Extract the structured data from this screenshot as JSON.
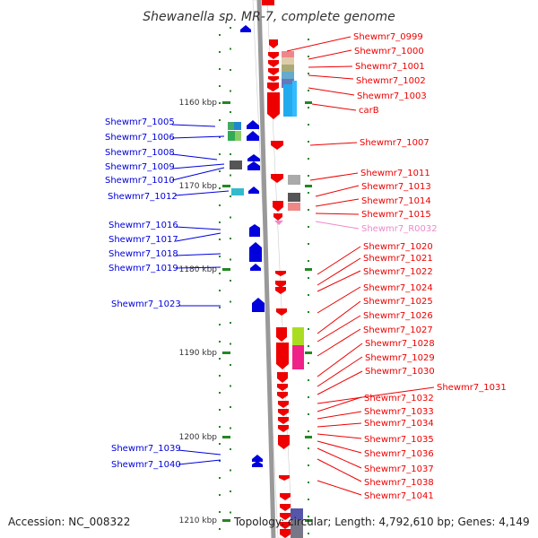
{
  "title": "Shewanella sp. MR-7, complete genome",
  "footer": {
    "accession": "Accession: NC_008322",
    "summary": "Topology: circular; Length: 4,792,610 bp; Genes: 4,149"
  },
  "axis": {
    "labels": [
      "1160 kbp",
      "1170 kbp",
      "1180 kbp",
      "1190 kbp",
      "1200 kbp",
      "1210 kbp"
    ]
  },
  "colors": {
    "forward": "#0000dd",
    "reverse": "#ee0000",
    "rna": "#ee88cc",
    "tick": "#228822",
    "backbone": "#999999"
  },
  "left_genes": [
    "Shewmr7_1005",
    "Shewmr7_1006",
    "Shewmr7_1008",
    "Shewmr7_1009",
    "Shewmr7_1010",
    "Shewmr7_1012",
    "Shewmr7_1016",
    "Shewmr7_1017",
    "Shewmr7_1018",
    "Shewmr7_1019",
    "Shewmr7_1023",
    "Shewmr7_1039",
    "Shewmr7_1040"
  ],
  "right_genes": [
    "Shewmr7_0999",
    "Shewmr7_1000",
    "Shewmr7_1001",
    "Shewmr7_1002",
    "Shewmr7_1003",
    "carB",
    "Shewmr7_1007",
    "Shewmr7_1011",
    "Shewmr7_1013",
    "Shewmr7_1014",
    "Shewmr7_1015",
    "Shewmr7_R0032",
    "Shewmr7_1020",
    "Shewmr7_1021",
    "Shewmr7_1022",
    "Shewmr7_1024",
    "Shewmr7_1025",
    "Shewmr7_1026",
    "Shewmr7_1027",
    "Shewmr7_1028",
    "Shewmr7_1029",
    "Shewmr7_1030",
    "Shewmr7_1031",
    "Shewmr7_1032",
    "Shewmr7_1033",
    "Shewmr7_1034",
    "Shewmr7_1035",
    "Shewmr7_1036",
    "Shewmr7_1037",
    "Shewmr7_1038",
    "Shewmr7_1041"
  ]
}
